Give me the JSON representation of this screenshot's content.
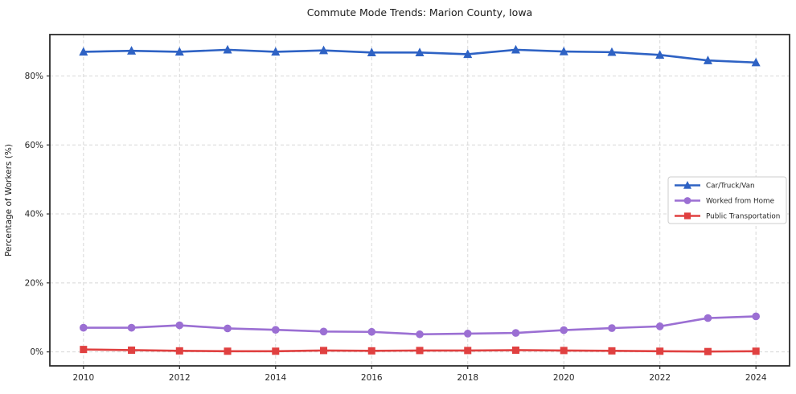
{
  "page": {
    "background": "#ffffff",
    "plot_border_color": "#2b2b2b",
    "grid_color": "#d8d8d8"
  },
  "chart_data": {
    "type": "line",
    "title": "Commute Mode Trends: Marion County, Iowa",
    "xlabel": "",
    "ylabel": "Percentage of Workers (%)",
    "x": [
      2010,
      2011,
      2012,
      2013,
      2014,
      2015,
      2016,
      2017,
      2018,
      2019,
      2020,
      2021,
      2022,
      2023,
      2024
    ],
    "x_ticks": [
      2010,
      2012,
      2014,
      2016,
      2018,
      2020,
      2022,
      2024
    ],
    "y_ticks": [
      0,
      20,
      40,
      60,
      80
    ],
    "y_tick_suffix": "%",
    "xlim": [
      2009.3,
      2024.7
    ],
    "ylim": [
      -4.05,
      92.0
    ],
    "grid": true,
    "grid_style": "dashed",
    "legend": {
      "position": "center-right",
      "background": "#ffffff",
      "border_color": "#cccccc"
    },
    "series": [
      {
        "name": "Car/Truck/Van",
        "color": "#2e62c4",
        "marker": "triangle",
        "values": [
          87.0,
          87.3,
          87.0,
          87.6,
          87.0,
          87.4,
          86.8,
          86.8,
          86.3,
          87.6,
          87.1,
          86.9,
          86.1,
          84.5,
          83.9
        ]
      },
      {
        "name": "Worked from Home",
        "color": "#9b6fd3",
        "marker": "circle",
        "values": [
          7.0,
          7.0,
          7.7,
          6.8,
          6.4,
          5.9,
          5.8,
          5.1,
          5.3,
          5.5,
          6.3,
          6.9,
          7.4,
          9.8,
          10.3
        ]
      },
      {
        "name": "Public Transportation",
        "color": "#e04040",
        "marker": "square",
        "values": [
          0.7,
          0.5,
          0.3,
          0.2,
          0.2,
          0.4,
          0.3,
          0.4,
          0.4,
          0.5,
          0.4,
          0.3,
          0.2,
          0.1,
          0.2
        ]
      }
    ]
  }
}
